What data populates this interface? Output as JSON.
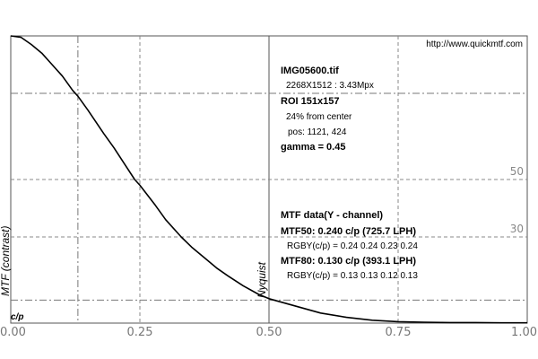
{
  "chart_data": {
    "type": "line",
    "title": "",
    "url": "http://www.quickmtf.com",
    "ylabel": "MTF (contrast)",
    "xlabel": "c/p",
    "xlim": [
      0,
      1
    ],
    "ylim": [
      0,
      1
    ],
    "xticks": [
      "0.00",
      "0.25",
      "0.50",
      "0.75",
      "1.00"
    ],
    "nyquist_label": "Nyquist",
    "nyquist_x": 0.5,
    "mtf50_x": 0.24,
    "mtf80_x": 0.13,
    "ref_labels": [
      {
        "text": "50",
        "y": 0.5
      },
      {
        "text": "30",
        "y": 0.3
      }
    ],
    "grid": "dashed",
    "series": [
      {
        "color": "#000000",
        "x": [
          0.0,
          0.02,
          0.04,
          0.06,
          0.08,
          0.1,
          0.12,
          0.13,
          0.15,
          0.18,
          0.2,
          0.22,
          0.24,
          0.25,
          0.28,
          0.3,
          0.33,
          0.35,
          0.38,
          0.4,
          0.42,
          0.45,
          0.48,
          0.5,
          0.55,
          0.6,
          0.65,
          0.7,
          0.75,
          0.8,
          0.85,
          0.9,
          0.95,
          1.0
        ],
        "y": [
          1.0,
          0.995,
          0.97,
          0.94,
          0.9,
          0.86,
          0.81,
          0.79,
          0.74,
          0.66,
          0.61,
          0.555,
          0.5,
          0.48,
          0.41,
          0.36,
          0.3,
          0.265,
          0.22,
          0.19,
          0.165,
          0.13,
          0.1,
          0.085,
          0.06,
          0.035,
          0.02,
          0.01,
          0.005,
          0.003,
          0.002,
          0.002,
          0.001,
          0.001
        ]
      }
    ]
  },
  "info": {
    "file": "IMG05600.tif",
    "dims": "2268X1512 : 3.43Mpx",
    "roi": "ROI 151x157",
    "from_center": "24% from center",
    "pos": "pos: 1121, 424",
    "gamma": "gamma = 0.45",
    "mtf_header": "MTF data(Y - channel)",
    "mtf50": "MTF50: 0.240 c/p (725.7 LPH)",
    "rgby50": "RGBY(c/p) = 0.24 0.24 0.23 0.24",
    "mtf80": "MTF80: 0.130 c/p (393.1 LPH)",
    "rgby80": "RGBY(c/p) = 0.13 0.13 0.12 0.13"
  }
}
